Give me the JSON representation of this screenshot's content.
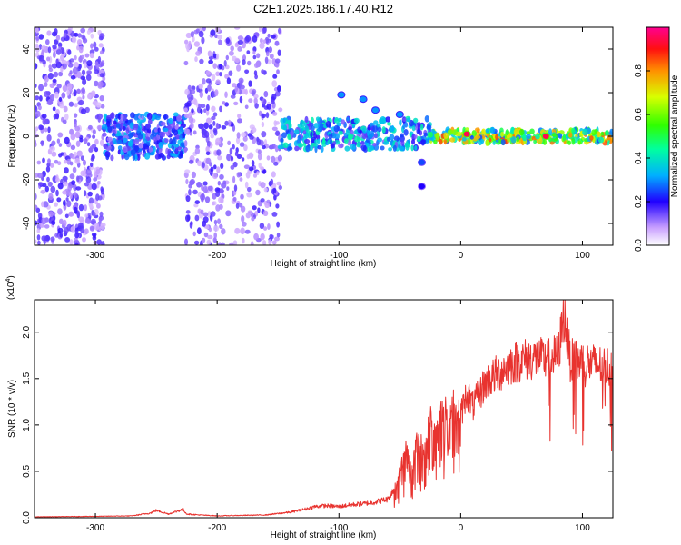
{
  "chart_data": [
    {
      "type": "heatmap",
      "title": "C2E1.2025.186.17.40.R12",
      "xlabel": "Height of straight line (km)",
      "ylabel": "Frequency (Hz)",
      "xlim": [
        -350,
        125
      ],
      "ylim": [
        -50,
        50
      ],
      "x_ticks": [
        -300,
        -200,
        -100,
        0,
        100
      ],
      "x_tick_labels": [
        "-300",
        "-200",
        "-100",
        "0",
        "100"
      ],
      "y_ticks": [
        -40,
        -20,
        0,
        20,
        40
      ],
      "y_tick_labels": [
        "-40",
        "-20",
        "0",
        "20",
        "40"
      ],
      "grid": false,
      "colorbar": {
        "label": "Normalized spectral amplitude",
        "range": [
          0,
          1
        ],
        "ticks": [
          0.0,
          0.2,
          0.4,
          0.6,
          0.8
        ],
        "tick_labels": [
          "0.0",
          "0.2",
          "0.4",
          "0.6",
          "0.8"
        ]
      },
      "regions": [
        {
          "x_range": [
            -350,
            -293
          ],
          "freq_range": [
            -50,
            50
          ],
          "amplitude": 0.15,
          "pattern": "scattered noise"
        },
        {
          "x_range": [
            -293,
            -226
          ],
          "freq_range": [
            -10,
            10
          ],
          "amplitude": 0.28,
          "pattern": "band centred at 0 Hz"
        },
        {
          "x_range": [
            -226,
            -148
          ],
          "freq_range": [
            -50,
            50
          ],
          "amplitude": 0.15,
          "pattern": "scattered noise"
        },
        {
          "x_range": [
            -148,
            -25
          ],
          "freq_range": [
            -6,
            8
          ],
          "amplitude": 0.35,
          "pattern": "band near 0 Hz"
        },
        {
          "x_range": [
            -25,
            125
          ],
          "freq_range": [
            -3,
            3
          ],
          "amplitude": 0.7,
          "pattern": "narrow line at 0 Hz"
        }
      ],
      "features": [
        {
          "x": -98,
          "freq": 19,
          "amplitude": 0.3
        },
        {
          "x": -80,
          "freq": 17,
          "amplitude": 0.3
        },
        {
          "x": -70,
          "freq": 12,
          "amplitude": 0.3
        },
        {
          "x": -50,
          "freq": 10,
          "amplitude": 0.3
        },
        {
          "x": -32,
          "freq": -23,
          "amplitude": 0.2
        },
        {
          "x": -32,
          "freq": -12,
          "amplitude": 0.25
        },
        {
          "x": 5,
          "freq": 1,
          "amplitude": 0.95
        },
        {
          "x": 70,
          "freq": 0,
          "amplitude": 0.95
        }
      ]
    },
    {
      "type": "line",
      "xlabel": "Height of straight line (km)",
      "ylabel": "SNR (10 * v/v)",
      "y_multiplier_label": "(x10^4)",
      "xlim": [
        -350,
        125
      ],
      "ylim": [
        0,
        2.35
      ],
      "x_ticks": [
        -300,
        -200,
        -100,
        0,
        100
      ],
      "x_tick_labels": [
        "-300",
        "-200",
        "-100",
        "0",
        "100"
      ],
      "y_ticks": [
        0.0,
        0.5,
        1.0,
        1.5,
        2.0
      ],
      "y_tick_labels": [
        "0.0",
        "0.5",
        "1.0",
        "1.5",
        "2.0"
      ],
      "grid": false,
      "color": "#e8332f",
      "series": [
        {
          "x": [
            -350,
            -300,
            -270,
            -255,
            -250,
            -240,
            -228,
            -225,
            -215,
            -200,
            -160,
            -140,
            -125,
            -120,
            -110,
            -100,
            -90,
            -80,
            -70,
            -60,
            -55,
            -50,
            -45,
            -40,
            -35,
            -30,
            -25,
            -20,
            -15,
            -10,
            -5,
            0,
            5,
            10,
            20,
            30,
            40,
            50,
            60,
            70,
            80,
            85,
            90,
            100,
            110,
            120,
            125
          ],
          "y": [
            0.01,
            0.015,
            0.02,
            0.05,
            0.08,
            0.04,
            0.09,
            0.04,
            0.03,
            0.02,
            0.03,
            0.06,
            0.1,
            0.12,
            0.13,
            0.12,
            0.14,
            0.15,
            0.17,
            0.2,
            0.3,
            0.5,
            0.75,
            0.55,
            0.9,
            0.7,
            1.1,
            0.9,
            1.2,
            1.1,
            1.3,
            1.1,
            1.35,
            1.2,
            1.45,
            1.55,
            1.65,
            1.7,
            1.72,
            1.7,
            1.75,
            2.2,
            1.7,
            1.68,
            1.65,
            1.63,
            1.62
          ]
        }
      ]
    }
  ]
}
